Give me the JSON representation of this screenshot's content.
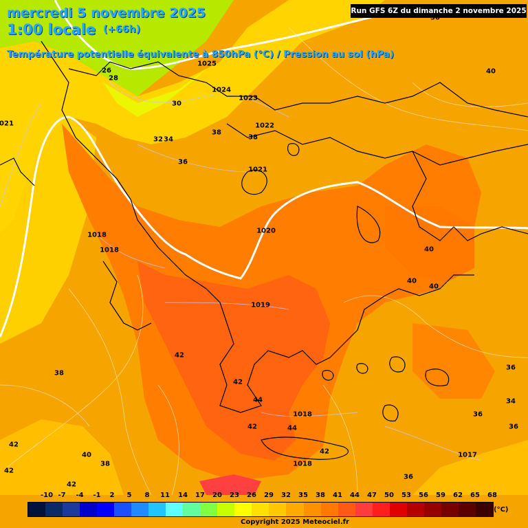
{
  "header": {
    "date_line": "mercredi 5 novembre 2025",
    "time_line": "1:00 locale",
    "offset": "(+66h)",
    "subtitle": "Température potentielle équivalente à 850hPa (°C) / Pression au sol (hPa)",
    "run": "Run GFS 6Z du dimanche 2 novembre 2025"
  },
  "pressure_labels": [
    "1025",
    "1024",
    "1023",
    "1022",
    "1021",
    "1020",
    "1019",
    "1018",
    "1018",
    "1018",
    "1018",
    "1017",
    "1021"
  ],
  "temperature_labels": [
    "26",
    "28",
    "30",
    "32",
    "34",
    "36",
    "38",
    "38",
    "40",
    "40",
    "40",
    "40",
    "42",
    "42",
    "42",
    "42",
    "44",
    "44",
    "38",
    "36",
    "36",
    "36",
    "34",
    "42",
    "42",
    "42",
    "40",
    "38",
    "36",
    "30"
  ],
  "legend": {
    "values": [
      "-10",
      "-7",
      "-4",
      "-1",
      "2",
      "5",
      "8",
      "11",
      "14",
      "17",
      "20",
      "23",
      "26",
      "29",
      "32",
      "35",
      "38",
      "41",
      "44",
      "47",
      "50",
      "53",
      "56",
      "59",
      "62",
      "65",
      "68"
    ],
    "colors": [
      "#04113a",
      "#0a2a66",
      "#1a3a9e",
      "#0000cc",
      "#0000ff",
      "#1a50ff",
      "#1e8cff",
      "#22c4ff",
      "#5fffff",
      "#5fff9f",
      "#7fff3f",
      "#c8ff00",
      "#ffff00",
      "#ffe000",
      "#ffc800",
      "#ffaa00",
      "#ff9000",
      "#ff7800",
      "#ff5a14",
      "#ff3c3c",
      "#ff1e1e",
      "#e00000",
      "#b40000",
      "#960000",
      "#780000",
      "#5a0000",
      "#3c0000"
    ],
    "unit": "(°C)"
  },
  "copyright": "Copyright 2025 Meteociel.fr"
}
